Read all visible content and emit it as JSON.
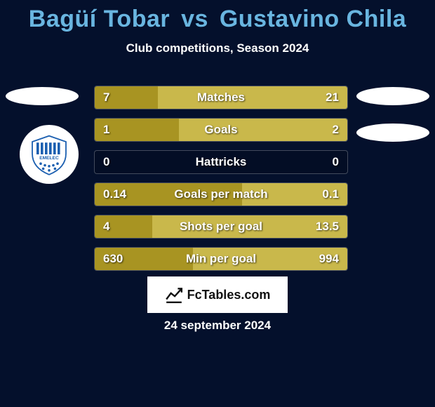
{
  "title_color": "#69b5e0",
  "title_parts": {
    "player1": "Bagüí Tobar",
    "vs": "vs",
    "player2": "Gustavino Chila"
  },
  "subtitle": "Club competitions, Season 2024",
  "date": "24 september 2024",
  "brand": "FcTables.com",
  "player1_color": "#a89422",
  "player2_color": "#c9b84b",
  "bar_bg": "rgba(0,0,0,0.15)",
  "bars": [
    {
      "label": "Matches",
      "left_val": "7",
      "right_val": "21",
      "left_frac": 0.25,
      "right_frac": 0.75
    },
    {
      "label": "Goals",
      "left_val": "1",
      "right_val": "2",
      "left_frac": 0.333,
      "right_frac": 0.667
    },
    {
      "label": "Hattricks",
      "left_val": "0",
      "right_val": "0",
      "left_frac": 0.0,
      "right_frac": 0.0
    },
    {
      "label": "Goals per match",
      "left_val": "0.14",
      "right_val": "0.1",
      "left_frac": 0.583,
      "right_frac": 0.417
    },
    {
      "label": "Shots per goal",
      "left_val": "4",
      "right_val": "13.5",
      "left_frac": 0.229,
      "right_frac": 0.771
    },
    {
      "label": "Min per goal",
      "left_val": "630",
      "right_val": "994",
      "left_frac": 0.388,
      "right_frac": 0.612
    }
  ],
  "badge": {
    "stripe_color": "#1b5fb0",
    "star_color": "#1b5fb0",
    "bg": "#ffffff",
    "label": "EMELEC"
  }
}
